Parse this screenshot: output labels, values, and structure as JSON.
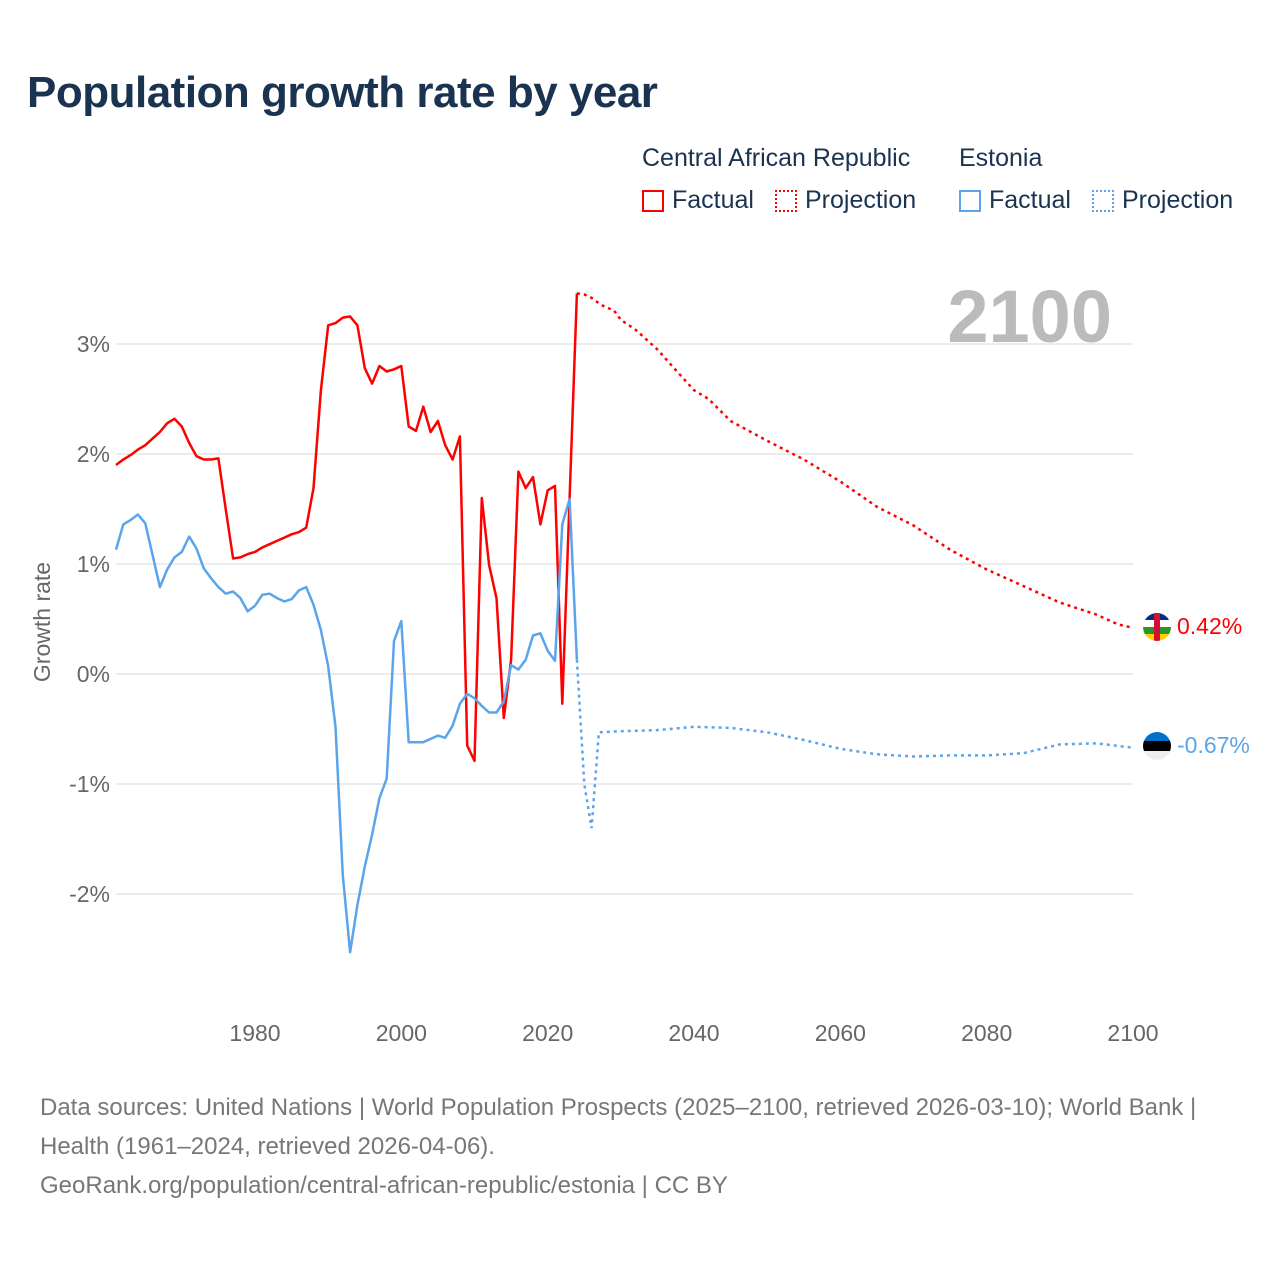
{
  "title": "Population growth rate by year",
  "legend": {
    "groups": [
      {
        "name": "Central African Republic",
        "factual": "Factual",
        "projection": "Projection",
        "color": "#ff0000"
      },
      {
        "name": "Estonia",
        "factual": "Factual",
        "projection": "Projection",
        "color": "#5ba4ec"
      }
    ]
  },
  "year_label": "2100",
  "source": {
    "line1": "Data sources: United Nations | World Population Prospects (2025–2100, retrieved 2026-03-10); World Bank | Health (1961–2024, retrieved 2026-04-06).",
    "line2": "GeoRank.org/population/central-african-republic/estonia | CC BY"
  },
  "chart_data": {
    "type": "line",
    "title": "Population growth rate by year",
    "xlabel": "",
    "ylabel": "Growth rate",
    "xlim": [
      1961,
      2100
    ],
    "ylim": [
      -3.0,
      3.6
    ],
    "x_ticks": [
      1980,
      2000,
      2020,
      2040,
      2060,
      2080,
      2100
    ],
    "x_tick_labels": [
      "1980",
      "2000",
      "2020",
      "2040",
      "2060",
      "2080",
      "2100"
    ],
    "y_ticks": [
      3,
      2,
      1,
      0,
      -1,
      -2
    ],
    "y_tick_labels": [
      "3%",
      "2%",
      "1%",
      "0%",
      "-1%",
      "-2%"
    ],
    "grid": true,
    "legend_position": "top-right",
    "series": [
      {
        "name": "Central African Republic",
        "color": "#ff0000",
        "end_label": "0.42%",
        "factual": {
          "x": [
            1961,
            1962,
            1963,
            1964,
            1965,
            1966,
            1967,
            1968,
            1969,
            1970,
            1971,
            1972,
            1973,
            1974,
            1975,
            1976,
            1977,
            1978,
            1979,
            1980,
            1981,
            1982,
            1983,
            1984,
            1985,
            1986,
            1987,
            1988,
            1989,
            1990,
            1991,
            1992,
            1993,
            1994,
            1995,
            1996,
            1997,
            1998,
            1999,
            2000,
            2001,
            2002,
            2003,
            2004,
            2005,
            2006,
            2007,
            2008,
            2009,
            2010,
            2011,
            2012,
            2013,
            2014,
            2015,
            2016,
            2017,
            2018,
            2019,
            2020,
            2021,
            2022,
            2023,
            2024
          ],
          "y": [
            1.9,
            1.95,
            1.99,
            2.04,
            2.08,
            2.14,
            2.2,
            2.28,
            2.32,
            2.25,
            2.1,
            1.98,
            1.95,
            1.95,
            1.96,
            1.5,
            1.05,
            1.06,
            1.09,
            1.11,
            1.15,
            1.18,
            1.21,
            1.24,
            1.27,
            1.29,
            1.33,
            1.69,
            2.58,
            3.17,
            3.19,
            3.24,
            3.25,
            3.17,
            2.78,
            2.64,
            2.8,
            2.75,
            2.77,
            2.8,
            2.25,
            2.21,
            2.43,
            2.2,
            2.3,
            2.08,
            1.95,
            2.16,
            -0.65,
            -0.79,
            1.6,
            0.99,
            0.69,
            -0.4,
            0.13,
            1.84,
            1.69,
            1.79,
            1.36,
            1.67,
            1.71,
            -0.27,
            1.6,
            3.46
          ]
        },
        "projection": {
          "x": [
            2024,
            2025,
            2026,
            2027,
            2028,
            2029,
            2030,
            2032,
            2035,
            2037,
            2040,
            2042,
            2045,
            2050,
            2055,
            2060,
            2065,
            2070,
            2075,
            2080,
            2085,
            2090,
            2095,
            2098,
            2100
          ],
          "y": [
            3.46,
            3.45,
            3.42,
            3.37,
            3.33,
            3.31,
            3.22,
            3.13,
            2.95,
            2.8,
            2.58,
            2.5,
            2.3,
            2.12,
            1.95,
            1.75,
            1.52,
            1.35,
            1.13,
            0.95,
            0.8,
            0.65,
            0.54,
            0.45,
            0.42
          ]
        }
      },
      {
        "name": "Estonia",
        "color": "#5ba4ec",
        "end_label": "-0.67%",
        "factual": {
          "x": [
            1961,
            1962,
            1963,
            1964,
            1965,
            1966,
            1967,
            1968,
            1969,
            1970,
            1971,
            1972,
            1973,
            1974,
            1975,
            1976,
            1977,
            1978,
            1979,
            1980,
            1981,
            1982,
            1983,
            1984,
            1985,
            1986,
            1987,
            1988,
            1989,
            1990,
            1991,
            1992,
            1993,
            1994,
            1995,
            1996,
            1997,
            1998,
            1999,
            2000,
            2001,
            2002,
            2003,
            2004,
            2005,
            2006,
            2007,
            2008,
            2009,
            2010,
            2011,
            2012,
            2013,
            2014,
            2015,
            2016,
            2017,
            2018,
            2019,
            2020,
            2021,
            2022,
            2023,
            2024
          ],
          "y": [
            1.13,
            1.36,
            1.4,
            1.45,
            1.37,
            1.08,
            0.79,
            0.95,
            1.06,
            1.11,
            1.25,
            1.14,
            0.96,
            0.87,
            0.79,
            0.73,
            0.75,
            0.69,
            0.57,
            0.62,
            0.72,
            0.73,
            0.69,
            0.66,
            0.68,
            0.76,
            0.79,
            0.63,
            0.4,
            0.07,
            -0.48,
            -1.83,
            -2.53,
            -2.1,
            -1.75,
            -1.46,
            -1.13,
            -0.95,
            0.3,
            0.48,
            -0.62,
            -0.62,
            -0.62,
            -0.59,
            -0.56,
            -0.58,
            -0.47,
            -0.27,
            -0.18,
            -0.22,
            -0.29,
            -0.35,
            -0.35,
            -0.25,
            0.08,
            0.04,
            0.13,
            0.35,
            0.37,
            0.21,
            0.12,
            1.36,
            1.59,
            0.13
          ]
        },
        "projection": {
          "x": [
            2024,
            2025,
            2026,
            2027,
            2030,
            2035,
            2040,
            2045,
            2050,
            2055,
            2060,
            2065,
            2070,
            2075,
            2080,
            2085,
            2090,
            2095,
            2100
          ],
          "y": [
            0.13,
            -1.0,
            -1.4,
            -0.53,
            -0.52,
            -0.51,
            -0.48,
            -0.49,
            -0.53,
            -0.6,
            -0.68,
            -0.73,
            -0.75,
            -0.74,
            -0.74,
            -0.72,
            -0.64,
            -0.63,
            -0.67
          ]
        }
      }
    ]
  }
}
